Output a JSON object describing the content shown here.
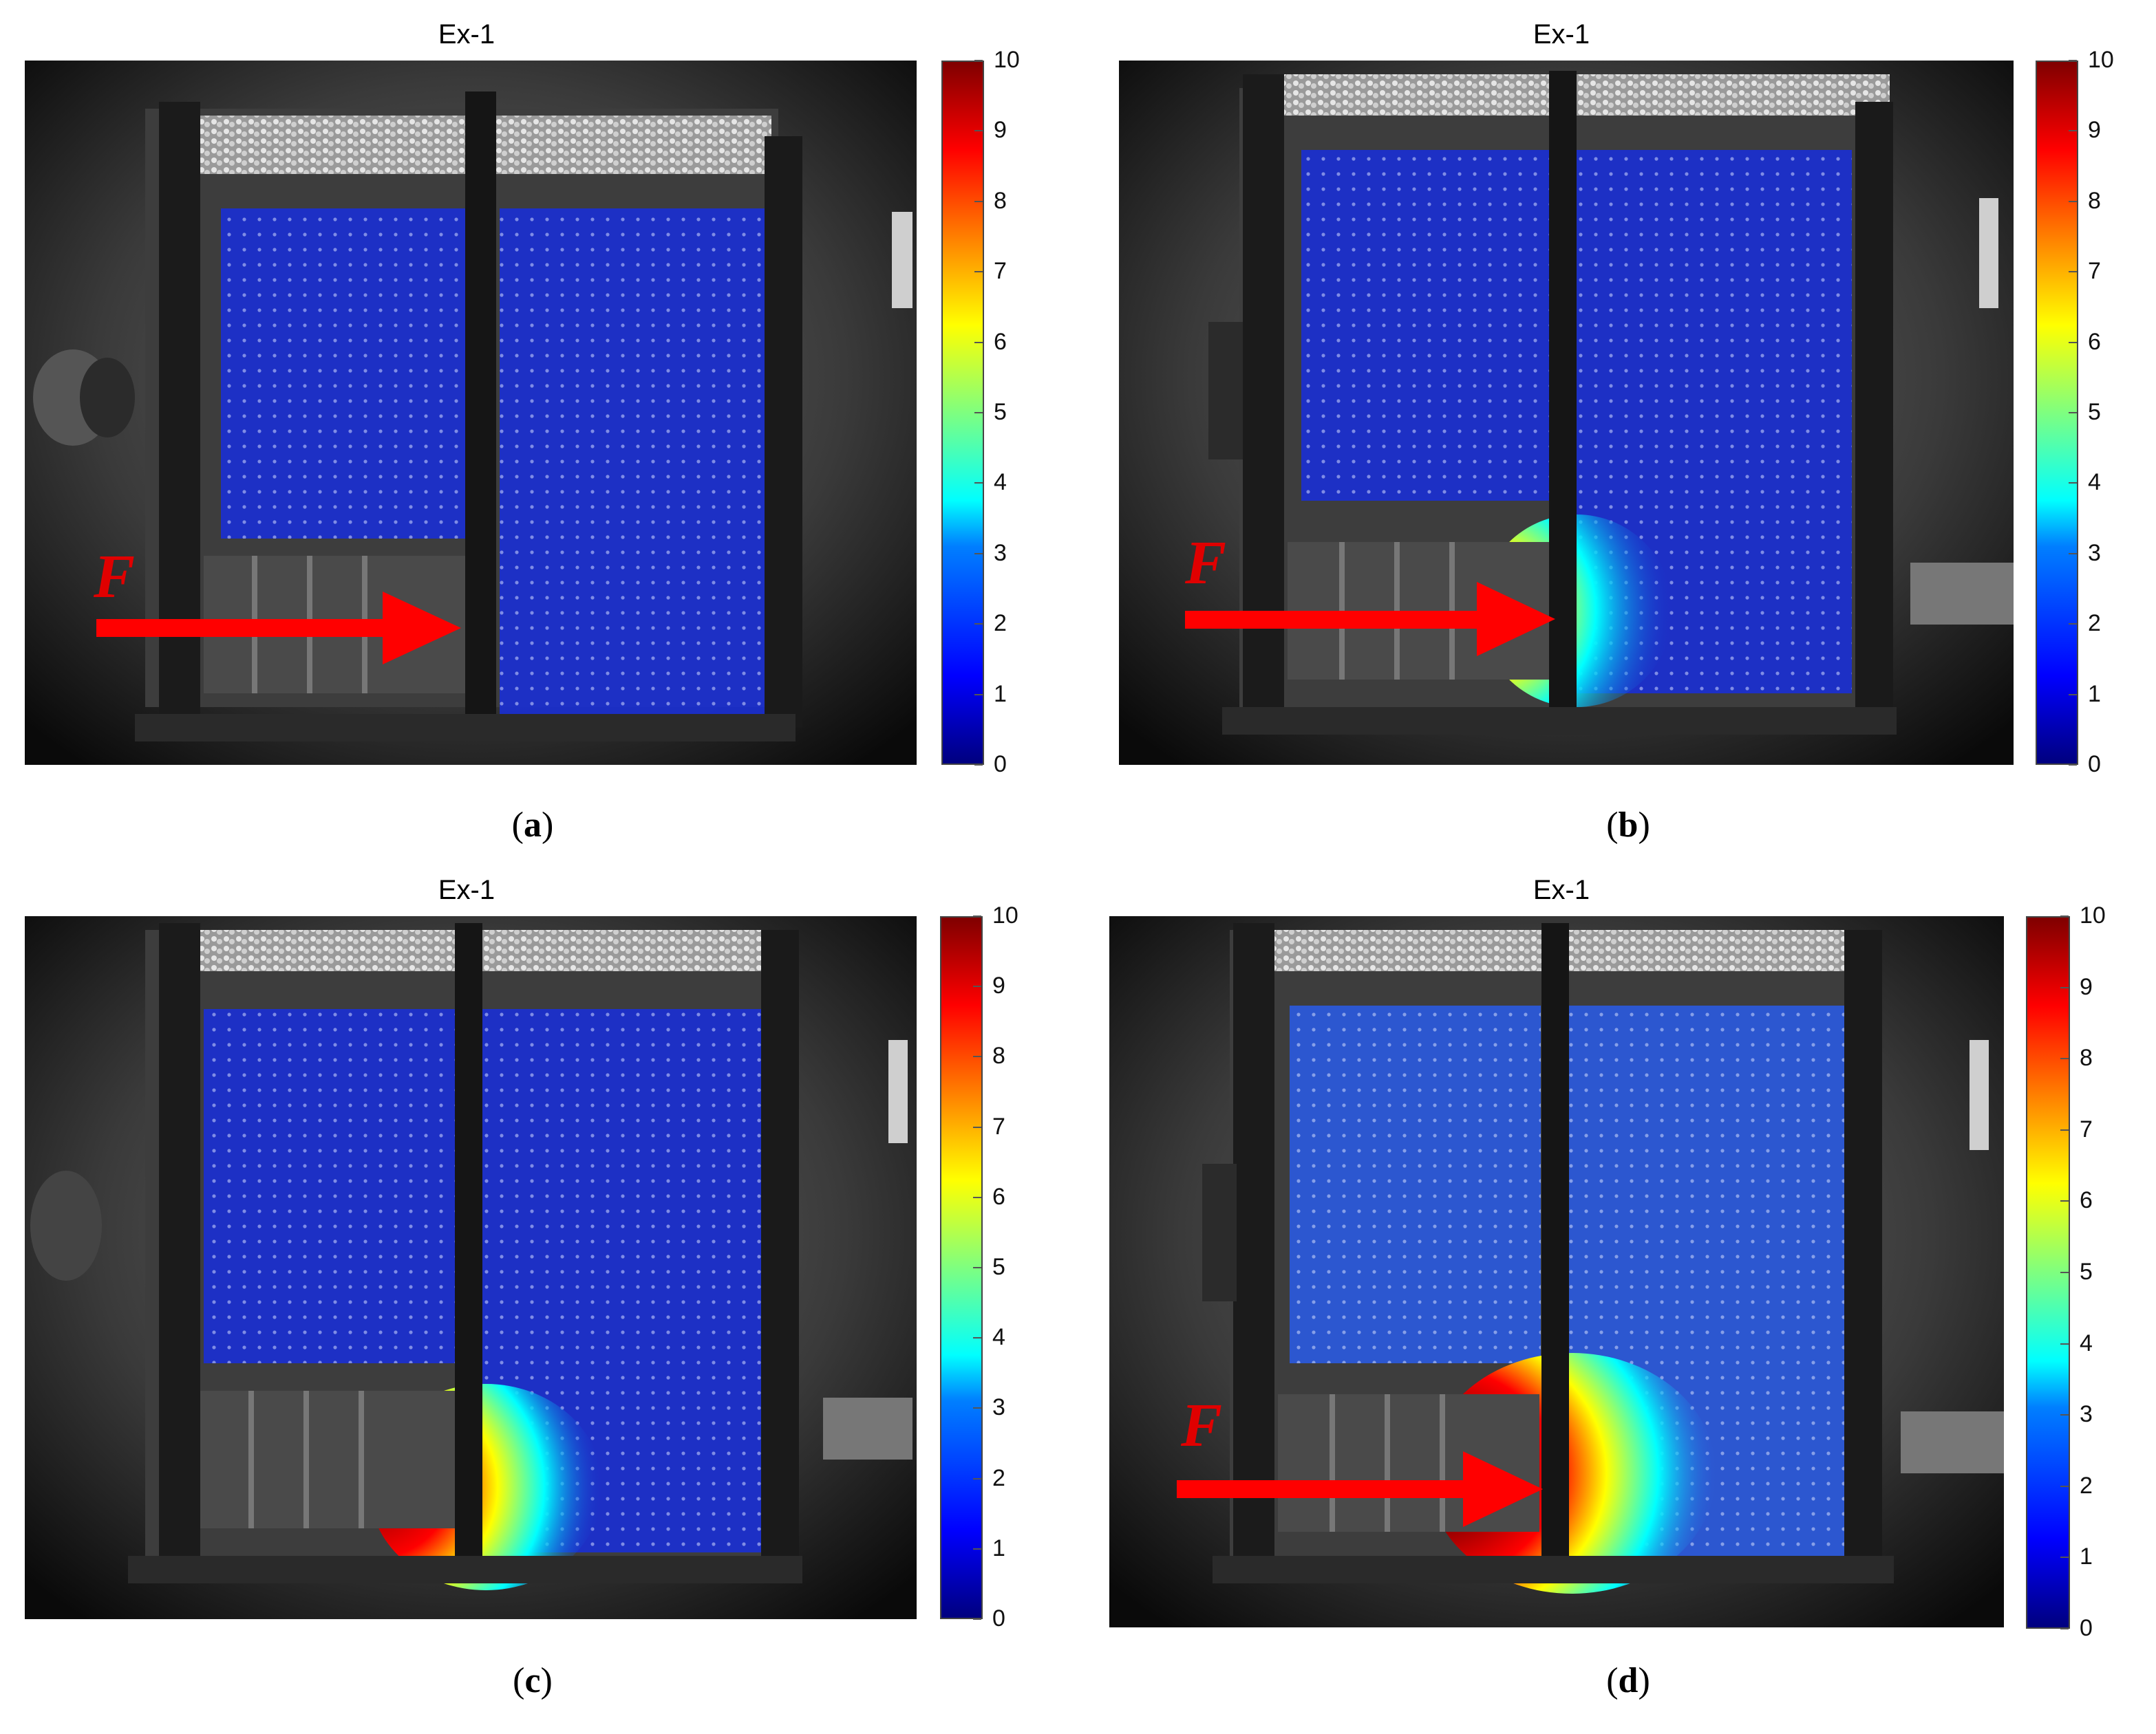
{
  "panels": [
    {
      "id": "a",
      "title": "Ex-1",
      "caption_open": "(",
      "caption_letter": "a",
      "caption_close": ")",
      "force_label": "F",
      "show_force": true,
      "hotspot": "none"
    },
    {
      "id": "b",
      "title": "Ex-1",
      "caption_open": "(",
      "caption_letter": "b",
      "caption_close": ")",
      "force_label": "F",
      "show_force": true,
      "hotspot": "small"
    },
    {
      "id": "c",
      "title": "Ex-1",
      "caption_open": "(",
      "caption_letter": "c",
      "caption_close": ")",
      "force_label": "",
      "show_force": false,
      "hotspot": "medium"
    },
    {
      "id": "d",
      "title": "Ex-1",
      "caption_open": "(",
      "caption_letter": "d",
      "caption_close": ")",
      "force_label": "F",
      "show_force": true,
      "hotspot": "large"
    }
  ],
  "colorbar": {
    "ticks": [
      "0",
      "1",
      "2",
      "3",
      "4",
      "5",
      "6",
      "7",
      "8",
      "9",
      "10"
    ],
    "min": 0,
    "max": 10,
    "colormap": "jet"
  },
  "colors": {
    "overlay_blue": "#1a2fd0",
    "arrow_red": "#ff0000",
    "force_label_red": "#e00000"
  }
}
